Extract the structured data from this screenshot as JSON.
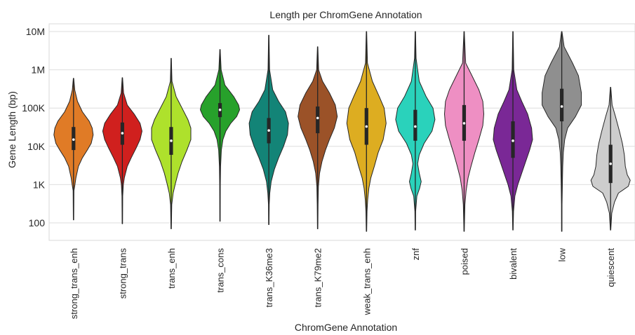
{
  "chart_data": {
    "type": "violin",
    "title": "Length per ChromGene Annotation",
    "xlabel": "ChromGene Annotation",
    "ylabel": "Gene Length (bp)",
    "yscale": "log",
    "ylim": [
      35,
      20000000
    ],
    "yticks": [
      {
        "value": 100,
        "label": "100"
      },
      {
        "value": 1000,
        "label": "1K"
      },
      {
        "value": 10000,
        "label": "10K"
      },
      {
        "value": 100000,
        "label": "100K"
      },
      {
        "value": 1000000,
        "label": "1M"
      },
      {
        "value": 10000000,
        "label": "10M"
      }
    ],
    "grid": "horizontal",
    "categories": [
      "strong_trans_enh",
      "strong_trans",
      "trans_enh",
      "trans_cons",
      "trans_K36me3",
      "trans_K79me2",
      "weak_trans_enh",
      "znf",
      "poised",
      "bivalent",
      "low",
      "quiescent"
    ],
    "series": [
      {
        "category": "strong_trans_enh",
        "color": "#e07b26",
        "min": 120,
        "q1": 8000,
        "median": 15000,
        "q3": 32000,
        "max": 600000,
        "shape": [
          [
            600000,
            0.01
          ],
          [
            300000,
            0.06
          ],
          [
            150000,
            0.2
          ],
          [
            80000,
            0.45
          ],
          [
            45000,
            0.8
          ],
          [
            30000,
            0.95
          ],
          [
            20000,
            1.0
          ],
          [
            12000,
            0.9
          ],
          [
            8000,
            0.7
          ],
          [
            5000,
            0.45
          ],
          [
            3000,
            0.25
          ],
          [
            1500,
            0.12
          ],
          [
            1000,
            0.07
          ],
          [
            700,
            0.02
          ],
          [
            120,
            0.01
          ]
        ]
      },
      {
        "category": "strong_trans",
        "color": "#d0201e",
        "min": 95,
        "q1": 11000,
        "median": 22000,
        "q3": 42000,
        "max": 620000,
        "shape": [
          [
            620000,
            0.01
          ],
          [
            250000,
            0.06
          ],
          [
            120000,
            0.25
          ],
          [
            70000,
            0.6
          ],
          [
            40000,
            0.9
          ],
          [
            25000,
            1.0
          ],
          [
            15000,
            0.9
          ],
          [
            9000,
            0.7
          ],
          [
            5000,
            0.45
          ],
          [
            3000,
            0.25
          ],
          [
            1500,
            0.1
          ],
          [
            1000,
            0.05
          ],
          [
            500,
            0.02
          ],
          [
            95,
            0.01
          ]
        ]
      },
      {
        "category": "trans_enh",
        "color": "#aee12c",
        "min": 70,
        "q1": 6000,
        "median": 14000,
        "q3": 32000,
        "max": 2000000,
        "shape": [
          [
            2000000,
            0.01
          ],
          [
            500000,
            0.04
          ],
          [
            200000,
            0.25
          ],
          [
            100000,
            0.55
          ],
          [
            50000,
            0.85
          ],
          [
            30000,
            1.0
          ],
          [
            15000,
            1.0
          ],
          [
            8000,
            0.8
          ],
          [
            4000,
            0.55
          ],
          [
            2000,
            0.35
          ],
          [
            1000,
            0.2
          ],
          [
            600,
            0.1
          ],
          [
            300,
            0.03
          ],
          [
            70,
            0.01
          ]
        ]
      },
      {
        "category": "trans_cons",
        "color": "#27a12b",
        "min": 110,
        "q1": 58000,
        "median": 90000,
        "q3": 135000,
        "max": 3400000,
        "shape": [
          [
            3400000,
            0.01
          ],
          [
            1000000,
            0.06
          ],
          [
            400000,
            0.25
          ],
          [
            200000,
            0.7
          ],
          [
            120000,
            0.95
          ],
          [
            90000,
            1.0
          ],
          [
            60000,
            0.85
          ],
          [
            40000,
            0.55
          ],
          [
            25000,
            0.3
          ],
          [
            15000,
            0.15
          ],
          [
            8000,
            0.07
          ],
          [
            3000,
            0.03
          ],
          [
            1000,
            0.015
          ],
          [
            110,
            0.01
          ]
        ]
      },
      {
        "category": "trans_K36me3",
        "color": "#138477",
        "min": 90,
        "q1": 12000,
        "median": 26000,
        "q3": 55000,
        "max": 8000000,
        "shape": [
          [
            8000000,
            0.01
          ],
          [
            1000000,
            0.04
          ],
          [
            300000,
            0.2
          ],
          [
            150000,
            0.5
          ],
          [
            80000,
            0.85
          ],
          [
            40000,
            1.0
          ],
          [
            20000,
            0.95
          ],
          [
            10000,
            0.75
          ],
          [
            5000,
            0.5
          ],
          [
            2500,
            0.28
          ],
          [
            1200,
            0.12
          ],
          [
            600,
            0.05
          ],
          [
            300,
            0.02
          ],
          [
            90,
            0.01
          ]
        ]
      },
      {
        "category": "trans_K79me2",
        "color": "#9b5228",
        "min": 70,
        "q1": 22000,
        "median": 55000,
        "q3": 110000,
        "max": 4000000,
        "shape": [
          [
            4000000,
            0.01
          ],
          [
            1000000,
            0.05
          ],
          [
            500000,
            0.25
          ],
          [
            250000,
            0.6
          ],
          [
            120000,
            0.9
          ],
          [
            60000,
            1.0
          ],
          [
            30000,
            0.85
          ],
          [
            15000,
            0.6
          ],
          [
            8000,
            0.4
          ],
          [
            4000,
            0.22
          ],
          [
            2000,
            0.1
          ],
          [
            900,
            0.04
          ],
          [
            300,
            0.02
          ],
          [
            70,
            0.01
          ]
        ]
      },
      {
        "category": "weak_trans_enh",
        "color": "#ddad21",
        "min": 60,
        "q1": 11000,
        "median": 33000,
        "q3": 100000,
        "max": 10000000,
        "shape": [
          [
            10000000,
            0.01
          ],
          [
            1500000,
            0.05
          ],
          [
            500000,
            0.3
          ],
          [
            200000,
            0.65
          ],
          [
            100000,
            0.9
          ],
          [
            40000,
            1.0
          ],
          [
            15000,
            0.85
          ],
          [
            7000,
            0.6
          ],
          [
            3000,
            0.4
          ],
          [
            1500,
            0.22
          ],
          [
            800,
            0.12
          ],
          [
            400,
            0.06
          ],
          [
            200,
            0.03
          ],
          [
            60,
            0.01
          ]
        ]
      },
      {
        "category": "znf",
        "color": "#2ad2bb",
        "min": 65,
        "q1": 14000,
        "median": 33000,
        "q3": 90000,
        "max": 10000000,
        "shape": [
          [
            10000000,
            0.01
          ],
          [
            2000000,
            0.04
          ],
          [
            500000,
            0.2
          ],
          [
            200000,
            0.55
          ],
          [
            100000,
            0.9
          ],
          [
            50000,
            1.0
          ],
          [
            25000,
            0.85
          ],
          [
            12000,
            0.45
          ],
          [
            6000,
            0.2
          ],
          [
            3500,
            0.12
          ],
          [
            2000,
            0.2
          ],
          [
            1200,
            0.3
          ],
          [
            800,
            0.22
          ],
          [
            500,
            0.08
          ],
          [
            200,
            0.02
          ],
          [
            65,
            0.01
          ]
        ]
      },
      {
        "category": "poised",
        "color": "#ee8fc3",
        "min": 60,
        "q1": 14000,
        "median": 40000,
        "q3": 120000,
        "max": 10000000,
        "shape": [
          [
            10000000,
            0.01
          ],
          [
            1500000,
            0.08
          ],
          [
            700000,
            0.4
          ],
          [
            300000,
            0.75
          ],
          [
            150000,
            0.95
          ],
          [
            70000,
            1.0
          ],
          [
            35000,
            0.95
          ],
          [
            15000,
            0.75
          ],
          [
            7000,
            0.55
          ],
          [
            3000,
            0.35
          ],
          [
            1500,
            0.2
          ],
          [
            700,
            0.1
          ],
          [
            300,
            0.04
          ],
          [
            60,
            0.01
          ]
        ]
      },
      {
        "category": "bivalent",
        "color": "#7a2896",
        "min": 65,
        "q1": 5000,
        "median": 14000,
        "q3": 45000,
        "max": 10000000,
        "shape": [
          [
            10000000,
            0.01
          ],
          [
            1000000,
            0.04
          ],
          [
            300000,
            0.2
          ],
          [
            150000,
            0.45
          ],
          [
            70000,
            0.75
          ],
          [
            30000,
            0.95
          ],
          [
            15000,
            1.0
          ],
          [
            8000,
            0.85
          ],
          [
            4000,
            0.65
          ],
          [
            2000,
            0.45
          ],
          [
            1000,
            0.25
          ],
          [
            500,
            0.1
          ],
          [
            200,
            0.03
          ],
          [
            65,
            0.01
          ]
        ]
      },
      {
        "category": "low",
        "color": "#8f8f8f",
        "min": 60,
        "q1": 45000,
        "median": 110000,
        "q3": 320000,
        "max": 10000000,
        "shape": [
          [
            10000000,
            0.01
          ],
          [
            4000000,
            0.12
          ],
          [
            1500000,
            0.55
          ],
          [
            700000,
            0.85
          ],
          [
            250000,
            1.0
          ],
          [
            120000,
            1.0
          ],
          [
            60000,
            0.7
          ],
          [
            30000,
            0.3
          ],
          [
            15000,
            0.15
          ],
          [
            7000,
            0.08
          ],
          [
            3000,
            0.05
          ],
          [
            1000,
            0.03
          ],
          [
            300,
            0.015
          ],
          [
            60,
            0.01
          ]
        ]
      },
      {
        "category": "quiescent",
        "color": "#cdcdcd",
        "min": 65,
        "q1": 1100,
        "median": 3500,
        "q3": 11000,
        "max": 350000,
        "shape": [
          [
            350000,
            0.01
          ],
          [
            120000,
            0.08
          ],
          [
            60000,
            0.25
          ],
          [
            25000,
            0.45
          ],
          [
            12000,
            0.6
          ],
          [
            6000,
            0.7
          ],
          [
            3000,
            0.75
          ],
          [
            1800,
            0.85
          ],
          [
            1300,
            1.0
          ],
          [
            900,
            0.9
          ],
          [
            600,
            0.4
          ],
          [
            350,
            0.2
          ],
          [
            180,
            0.06
          ],
          [
            65,
            0.01
          ]
        ]
      }
    ]
  }
}
